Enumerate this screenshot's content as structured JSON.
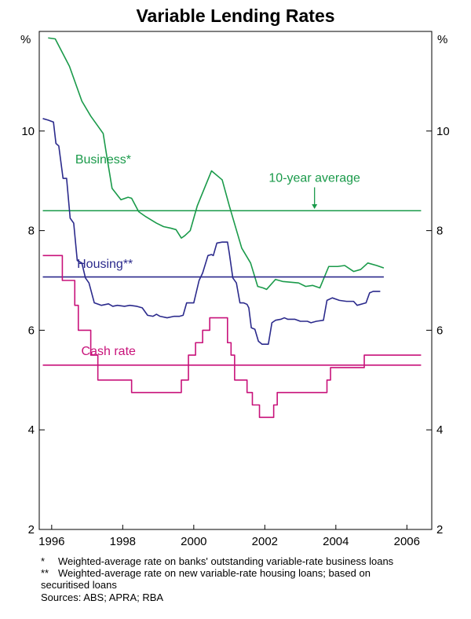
{
  "chart_data": {
    "type": "line",
    "title": "Variable Lending Rates",
    "ylabel_left": "%",
    "ylabel_right": "%",
    "ylim": [
      2,
      12
    ],
    "xlim": [
      1995.65,
      2006.7
    ],
    "y_ticks": [
      2,
      4,
      6,
      8,
      10
    ],
    "x_ticks": [
      1996,
      1998,
      2000,
      2002,
      2004,
      2006
    ],
    "x_tick_labels": [
      "1996",
      "1998",
      "2000",
      "2002",
      "2004",
      "2006"
    ],
    "grid": false,
    "series": [
      {
        "name": "Business*",
        "color": "#1a9a4a",
        "style": "line",
        "points": [
          [
            1995.9,
            11.87
          ],
          [
            1996.1,
            11.85
          ],
          [
            1996.5,
            11.3
          ],
          [
            1996.85,
            10.6
          ],
          [
            1997.1,
            10.3
          ],
          [
            1997.3,
            10.1
          ],
          [
            1997.45,
            9.95
          ],
          [
            1997.55,
            9.5
          ],
          [
            1997.7,
            8.85
          ],
          [
            1997.95,
            8.62
          ],
          [
            1998.15,
            8.67
          ],
          [
            1998.25,
            8.65
          ],
          [
            1998.45,
            8.38
          ],
          [
            1998.65,
            8.28
          ],
          [
            1998.95,
            8.15
          ],
          [
            1999.15,
            8.08
          ],
          [
            1999.35,
            8.05
          ],
          [
            1999.5,
            8.02
          ],
          [
            1999.65,
            7.85
          ],
          [
            1999.75,
            7.9
          ],
          [
            1999.9,
            8.0
          ],
          [
            2000.1,
            8.5
          ],
          [
            2000.5,
            9.2
          ],
          [
            2000.8,
            9.02
          ],
          [
            2001.0,
            8.5
          ],
          [
            2001.35,
            7.65
          ],
          [
            2001.6,
            7.35
          ],
          [
            2001.8,
            6.88
          ],
          [
            2001.95,
            6.85
          ],
          [
            2002.05,
            6.82
          ],
          [
            2002.3,
            7.02
          ],
          [
            2002.5,
            6.98
          ],
          [
            2002.65,
            6.97
          ],
          [
            2002.95,
            6.95
          ],
          [
            2003.15,
            6.88
          ],
          [
            2003.35,
            6.9
          ],
          [
            2003.55,
            6.85
          ],
          [
            2003.8,
            7.28
          ],
          [
            2004.05,
            7.28
          ],
          [
            2004.25,
            7.3
          ],
          [
            2004.5,
            7.18
          ],
          [
            2004.7,
            7.22
          ],
          [
            2004.9,
            7.35
          ],
          [
            2005.15,
            7.3
          ],
          [
            2005.35,
            7.25
          ]
        ]
      },
      {
        "name": "10-year average",
        "color": "#1a9a4a",
        "style": "hline",
        "value": 8.4,
        "x_range": [
          1995.75,
          2006.4
        ]
      },
      {
        "name": "Housing**",
        "color": "#2b2a8c",
        "style": "line",
        "points": [
          [
            1995.75,
            10.25
          ],
          [
            1995.9,
            10.22
          ],
          [
            1996.05,
            10.18
          ],
          [
            1996.12,
            9.75
          ],
          [
            1996.2,
            9.7
          ],
          [
            1996.32,
            9.05
          ],
          [
            1996.42,
            9.05
          ],
          [
            1996.52,
            8.25
          ],
          [
            1996.62,
            8.15
          ],
          [
            1996.72,
            7.4
          ],
          [
            1996.85,
            7.35
          ],
          [
            1996.95,
            7.05
          ],
          [
            1997.05,
            6.95
          ],
          [
            1997.2,
            6.55
          ],
          [
            1997.4,
            6.5
          ],
          [
            1997.6,
            6.53
          ],
          [
            1997.72,
            6.48
          ],
          [
            1997.85,
            6.5
          ],
          [
            1998.05,
            6.48
          ],
          [
            1998.2,
            6.5
          ],
          [
            1998.4,
            6.48
          ],
          [
            1998.55,
            6.45
          ],
          [
            1998.7,
            6.3
          ],
          [
            1998.85,
            6.28
          ],
          [
            1998.95,
            6.32
          ],
          [
            1999.05,
            6.28
          ],
          [
            1999.25,
            6.25
          ],
          [
            1999.45,
            6.28
          ],
          [
            1999.6,
            6.28
          ],
          [
            1999.7,
            6.3
          ],
          [
            1999.8,
            6.55
          ],
          [
            2000.0,
            6.55
          ],
          [
            2000.15,
            7.0
          ],
          [
            2000.25,
            7.15
          ],
          [
            2000.4,
            7.5
          ],
          [
            2000.5,
            7.52
          ],
          [
            2000.55,
            7.5
          ],
          [
            2000.65,
            7.75
          ],
          [
            2000.8,
            7.77
          ],
          [
            2000.95,
            7.77
          ],
          [
            2001.0,
            7.55
          ],
          [
            2001.1,
            7.05
          ],
          [
            2001.2,
            6.95
          ],
          [
            2001.3,
            6.55
          ],
          [
            2001.4,
            6.55
          ],
          [
            2001.5,
            6.52
          ],
          [
            2001.55,
            6.45
          ],
          [
            2001.62,
            6.05
          ],
          [
            2001.72,
            6.02
          ],
          [
            2001.82,
            5.78
          ],
          [
            2001.92,
            5.72
          ],
          [
            2002.1,
            5.72
          ],
          [
            2002.2,
            6.15
          ],
          [
            2002.3,
            6.2
          ],
          [
            2002.45,
            6.22
          ],
          [
            2002.55,
            6.25
          ],
          [
            2002.65,
            6.22
          ],
          [
            2002.85,
            6.22
          ],
          [
            2003.0,
            6.18
          ],
          [
            2003.2,
            6.18
          ],
          [
            2003.3,
            6.15
          ],
          [
            2003.45,
            6.18
          ],
          [
            2003.65,
            6.2
          ],
          [
            2003.75,
            6.6
          ],
          [
            2003.9,
            6.65
          ],
          [
            2004.1,
            6.6
          ],
          [
            2004.3,
            6.58
          ],
          [
            2004.5,
            6.58
          ],
          [
            2004.6,
            6.5
          ],
          [
            2004.85,
            6.55
          ],
          [
            2004.95,
            6.75
          ],
          [
            2005.05,
            6.78
          ],
          [
            2005.25,
            6.78
          ]
        ]
      },
      {
        "name": "Housing 10-year average",
        "color": "#2b2a8c",
        "style": "hline",
        "value": 7.07,
        "x_range": [
          1995.75,
          2005.35
        ]
      },
      {
        "name": "Cash rate",
        "color": "#c8127a",
        "style": "step",
        "points": [
          [
            1995.75,
            7.5
          ],
          [
            1996.3,
            7.0
          ],
          [
            1996.65,
            6.5
          ],
          [
            1996.75,
            6.0
          ],
          [
            1997.1,
            5.5
          ],
          [
            1997.3,
            5.0
          ],
          [
            1998.25,
            4.75
          ],
          [
            1999.65,
            5.0
          ],
          [
            1999.85,
            5.5
          ],
          [
            2000.05,
            5.75
          ],
          [
            2000.25,
            6.0
          ],
          [
            2000.45,
            6.25
          ],
          [
            2000.95,
            5.75
          ],
          [
            2001.05,
            5.5
          ],
          [
            2001.15,
            5.0
          ],
          [
            2001.5,
            4.75
          ],
          [
            2001.65,
            4.5
          ],
          [
            2001.85,
            4.25
          ],
          [
            2002.25,
            4.5
          ],
          [
            2002.35,
            4.75
          ],
          [
            2003.75,
            5.0
          ],
          [
            2003.85,
            5.25
          ],
          [
            2004.8,
            5.5
          ],
          [
            2006.4,
            5.5
          ]
        ]
      },
      {
        "name": "Cash rate 10-year average",
        "color": "#c8127a",
        "style": "hline",
        "value": 5.3,
        "x_range": [
          1995.75,
          2006.4
        ]
      }
    ],
    "annotations": [
      {
        "text": "Business*",
        "color": "#1a9a4a",
        "at": [
          1997.45,
          9.35
        ]
      },
      {
        "text": "10-year average",
        "color": "#1a9a4a",
        "at": [
          2003.4,
          8.98
        ],
        "arrow_to": [
          2003.4,
          8.42
        ]
      },
      {
        "text": "Housing**",
        "color": "#2b2a8c",
        "at": [
          1997.5,
          7.25
        ]
      },
      {
        "text": "Cash rate",
        "color": "#c8127a",
        "at": [
          1997.6,
          5.5
        ]
      }
    ]
  },
  "footnotes": {
    "note1_mark": "*",
    "note1_text": "Weighted-average rate on banks' outstanding variable-rate business loans",
    "note2_mark": "**",
    "note2_text_line1": "Weighted-average rate on new variable-rate housing loans; based on",
    "note2_text_line2": "securitised loans",
    "sources": "Sources: ABS; APRA; RBA"
  }
}
